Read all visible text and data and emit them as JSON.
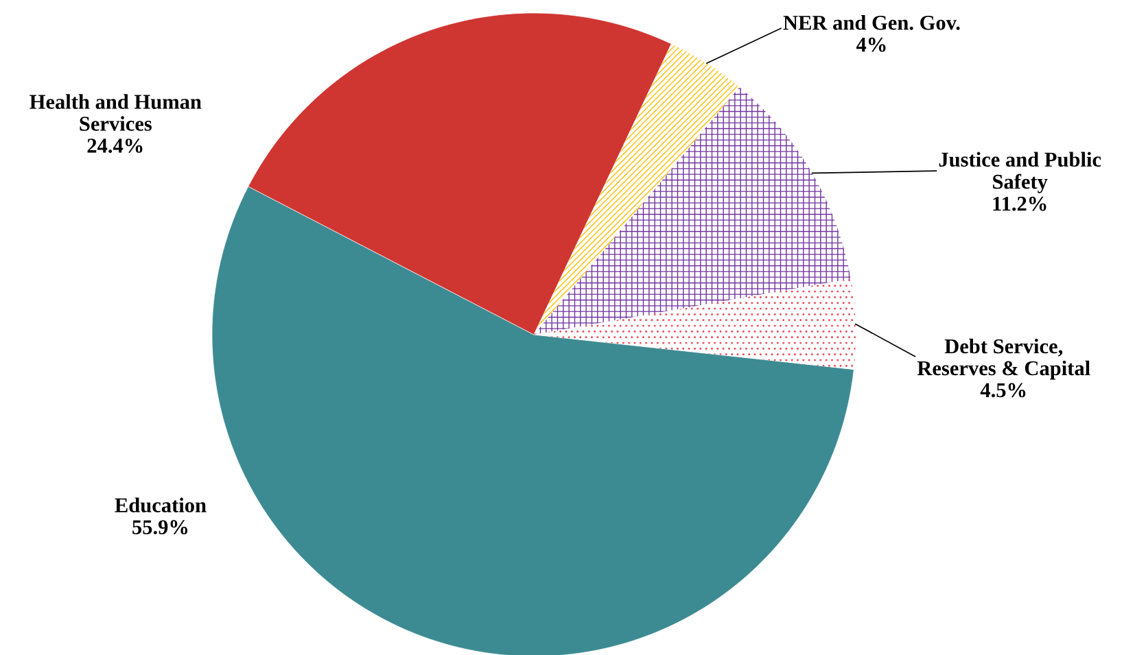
{
  "chart_data": {
    "type": "pie",
    "categories": [
      "Education",
      "Health and Human\nServices",
      "NER and Gen. Gov.",
      "Justice and Public\nSafety",
      "Debt Service,\nReserves & Capital"
    ],
    "values": [
      55.9,
      24.4,
      4,
      11.2,
      4.5
    ],
    "value_labels": [
      "55.9%",
      "24.4%",
      "4%",
      "11.2%",
      "4.5%"
    ],
    "colors": [
      "#3d8b92",
      "#cf3632",
      "#ffc000",
      "#7030a0",
      "#e8505b"
    ],
    "legend": false
  }
}
